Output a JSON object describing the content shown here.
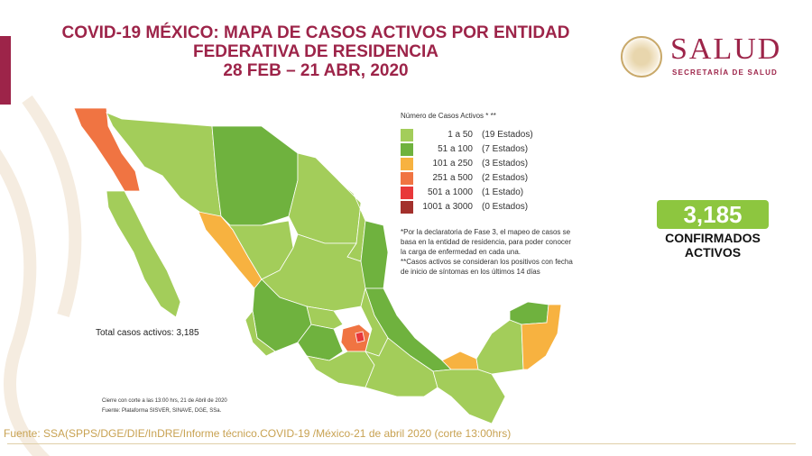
{
  "title": {
    "line1": "COVID-19 MÉXICO: MAPA DE CASOS ACTIVOS POR ENTIDAD",
    "line2": "FEDERATIVA DE RESIDENCIA",
    "line3": "28 FEB – 21 ABR, 2020"
  },
  "logo": {
    "name": "SALUD",
    "subtitle": "SECRETARÍA DE SALUD"
  },
  "legend": {
    "title": "Número de Casos Activos * **",
    "items": [
      {
        "range": "1 a 50",
        "count": "(19 Estados)",
        "color": "#a3cd5a"
      },
      {
        "range": "51 a 100",
        "count": "(7 Estados)",
        "color": "#6fb23e"
      },
      {
        "range": "101 a 250",
        "count": "(3 Estados)",
        "color": "#f7b240"
      },
      {
        "range": "251 a 500",
        "count": "(2 Estados)",
        "color": "#f07442"
      },
      {
        "range": "501 a 1000",
        "count": "(1 Estado)",
        "color": "#e8383a"
      },
      {
        "range": "1001 a 3000",
        "count": "(0 Estados)",
        "color": "#a3302c"
      }
    ],
    "note1": "*Por la declaratoria de Fase 3, el mapeo de casos se basa en la entidad de residencia, para poder conocer la carga de enfermedad en cada una.",
    "note2": "**Casos activos se consideran los positivos con fecha de inicio de síntomas en los últimos 14 días"
  },
  "confirmed": {
    "value": "3,185",
    "label1": "CONFIRMADOS",
    "label2": "ACTIVOS"
  },
  "total": "Total casos activos: 3,185",
  "cierre": "Cierre con corte a las 13:00 hrs, 21 de Abril de 2020",
  "plataforma": "Fuente: Plataforma SISVER, SINAVE, DGE, SSa.",
  "fuente": "Fuente: SSA(SPPS/DGE/DIE/InDRE/Informe técnico.COVID-19 /México-21 de abril 2020 (corte 13:00hrs)"
}
